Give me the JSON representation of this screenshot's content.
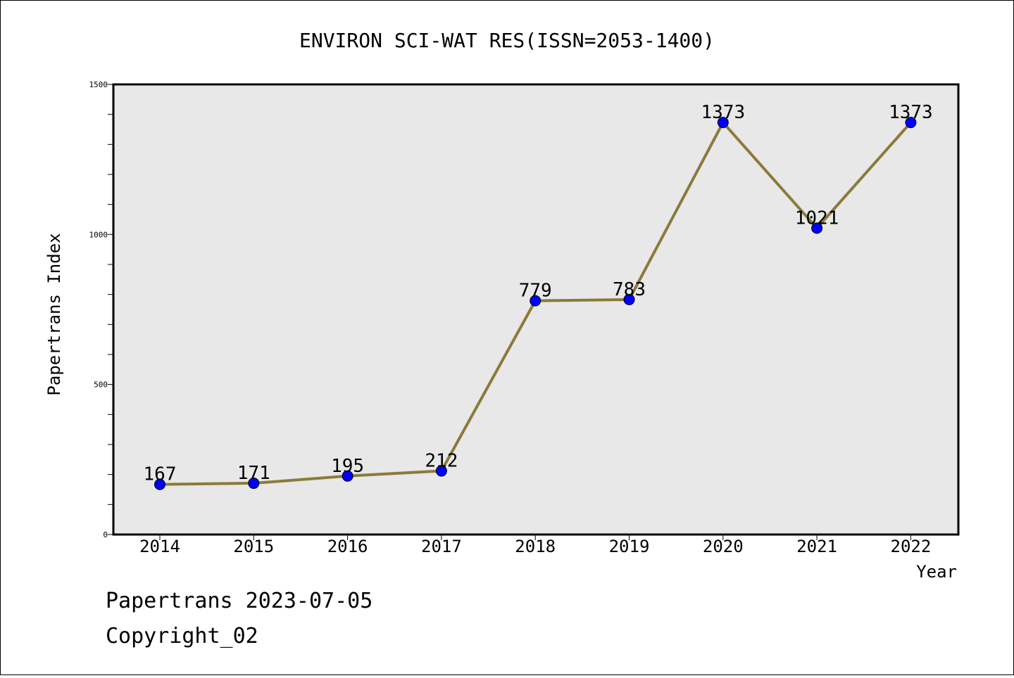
{
  "chart_data": {
    "type": "line",
    "title": "ENVIRON SCI-WAT RES(ISSN=2053-1400)",
    "xlabel": "Year",
    "ylabel": "Papertrans Index",
    "categories": [
      "2014",
      "2015",
      "2016",
      "2017",
      "2018",
      "2019",
      "2020",
      "2021",
      "2022"
    ],
    "series": [
      {
        "values": [
          167,
          171,
          195,
          212,
          779,
          783,
          1373,
          1021,
          1373
        ]
      }
    ],
    "data_labels": [
      "167",
      "171",
      "195",
      "212",
      "779",
      "783",
      "1373",
      "1021",
      "1373"
    ],
    "ylim": [
      0,
      1500
    ],
    "yticks": [
      "0",
      "500",
      "1000",
      "1500"
    ],
    "grid": false,
    "legend": "none",
    "colors": {
      "line": "#8b7a3a",
      "marker": "#0000ff",
      "plot_background": "#e8e8e8"
    }
  },
  "footer": {
    "line1": "Papertrans 2023-07-05",
    "line2": "Copyright_02"
  }
}
